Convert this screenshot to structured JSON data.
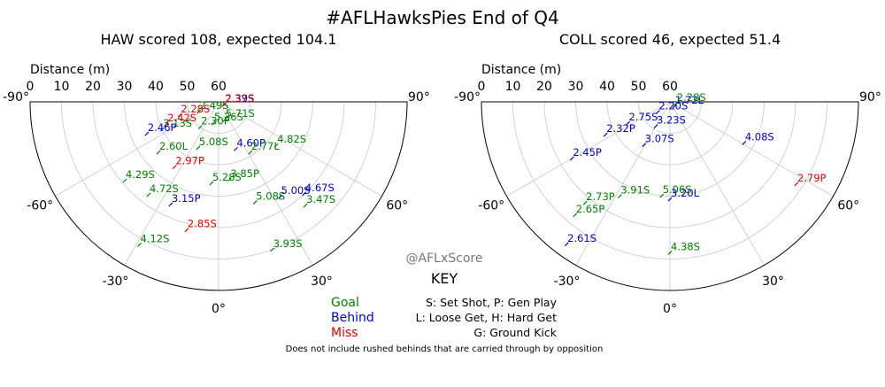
{
  "title": "#AFLHawksPies End of Q4",
  "watermark": "@AFLxScore",
  "colors": {
    "goal": "#008000",
    "behind": "#0000cc",
    "miss": "#e00000",
    "grid": "#c8c8c8"
  },
  "key": {
    "title": "KEY",
    "legend": [
      {
        "label": "Goal",
        "result": "goal"
      },
      {
        "label": "Behind",
        "result": "behind"
      },
      {
        "label": "Miss",
        "result": "miss"
      }
    ],
    "codes": [
      "S: Set Shot, P: Gen Play",
      "L: Loose Get, H: Hard Get",
      "G: Ground Kick"
    ],
    "note": "Does not include rushed behinds that are carried through by opposition"
  },
  "chart_data": [
    {
      "type": "scatter",
      "projection": "polar-half",
      "title": "HAW scored 108, expected 104.1",
      "radial_label": "Distance (m)",
      "radial_ticks": [
        60,
        50,
        40,
        30,
        20,
        10,
        0
      ],
      "radial_range": [
        0,
        60
      ],
      "angle_ticks": [
        -90,
        -60,
        -30,
        0,
        30,
        60,
        90
      ],
      "angle_tick_labels": [
        "-90°",
        "-60°",
        "-30°",
        "0°",
        "30°",
        "60°",
        "90°"
      ],
      "grid": true,
      "points": [
        {
          "label": "5.36S",
          "result": "goal",
          "angle": -14,
          "distance": 53
        },
        {
          "label": "5.71S",
          "result": "goal",
          "angle": 19,
          "distance": 54
        },
        {
          "label": "4.60P",
          "result": "behind",
          "angle": 20,
          "distance": 44
        },
        {
          "label": "2.30P",
          "result": "goal",
          "angle": -36,
          "distance": 50
        },
        {
          "label": "5.08S",
          "result": "goal",
          "angle": -24,
          "distance": 44
        },
        {
          "label": "5.28S",
          "result": "goal",
          "angle": -5,
          "distance": 34
        },
        {
          "label": "3.85P",
          "result": "goal",
          "angle": 8,
          "distance": 35
        },
        {
          "label": "2.97P",
          "result": "miss",
          "angle": -34,
          "distance": 35
        },
        {
          "label": "2.77L",
          "result": "goal",
          "angle": 32,
          "distance": 41
        },
        {
          "label": "2.49S",
          "result": "goal",
          "angle": -64,
          "distance": 53
        },
        {
          "label": "2.60L",
          "result": "goal",
          "angle": -50,
          "distance": 35
        },
        {
          "label": "3.15P",
          "result": "behind",
          "angle": -25,
          "distance": 24
        },
        {
          "label": "5.08S",
          "result": "goal",
          "angle": 20,
          "distance": 26
        },
        {
          "label": "3.13S",
          "result": "goal",
          "angle": -64,
          "distance": 40
        },
        {
          "label": "4.72S",
          "result": "goal",
          "angle": -37,
          "distance": 23
        },
        {
          "label": "5.00S",
          "result": "behind",
          "angle": 33,
          "distance": 24
        },
        {
          "label": "4.82S",
          "result": "goal",
          "angle": 53,
          "distance": 37
        },
        {
          "label": "2.39S",
          "result": "behind",
          "angle": 66,
          "distance": 58
        },
        {
          "label": "2.46P",
          "result": "behind",
          "angle": -66,
          "distance": 35
        },
        {
          "label": "4.29S",
          "result": "goal",
          "angle": -50,
          "distance": 21
        },
        {
          "label": "4.67S",
          "result": "behind",
          "angle": 43,
          "distance": 20
        },
        {
          "label": "2.37S",
          "result": "miss",
          "angle": 61,
          "distance": 58
        },
        {
          "label": "2.28S",
          "result": "miss",
          "angle": -71,
          "distance": 47
        },
        {
          "label": "4.12S",
          "result": "goal",
          "angle": -29,
          "distance": 8
        },
        {
          "label": "3.93S",
          "result": "goal",
          "angle": 20,
          "distance": 10
        },
        {
          "label": "2.42S",
          "result": "miss",
          "angle": -67,
          "distance": 42
        },
        {
          "label": "3.47S",
          "result": "goal",
          "angle": 40,
          "distance": 17
        },
        {
          "label": "2.85S",
          "result": "miss",
          "angle": -14,
          "distance": 18
        }
      ]
    },
    {
      "type": "scatter",
      "projection": "polar-half",
      "title": "COLL scored 46, expected 51.4",
      "radial_label": "Distance (m)",
      "radial_ticks": [
        60,
        50,
        40,
        30,
        20,
        10,
        0
      ],
      "radial_range": [
        0,
        60
      ],
      "angle_ticks": [
        -90,
        -60,
        -30,
        0,
        30,
        60,
        90
      ],
      "angle_tick_labels": [
        "-90°",
        "-60°",
        "-30°",
        "0°",
        "30°",
        "60°",
        "90°"
      ],
      "grid": true,
      "points": [
        {
          "label": "3.23S",
          "result": "behind",
          "angle": -30,
          "distance": 51
        },
        {
          "label": "1.72L",
          "result": "behind",
          "angle": 44,
          "distance": 58
        },
        {
          "label": "2.20S",
          "result": "behind",
          "angle": -50,
          "distance": 55
        },
        {
          "label": "3.07S",
          "result": "behind",
          "angle": -31,
          "distance": 44
        },
        {
          "label": "5.06S",
          "result": "goal",
          "angle": -5,
          "distance": 30
        },
        {
          "label": "3.20L",
          "result": "behind",
          "angle": 0,
          "distance": 29
        },
        {
          "label": "3.91S",
          "result": "goal",
          "angle": -28,
          "distance": 26
        },
        {
          "label": "2.75S",
          "result": "behind",
          "angle": -63,
          "distance": 45
        },
        {
          "label": "4.08S",
          "result": "behind",
          "angle": 61,
          "distance": 33
        },
        {
          "label": "2.28S",
          "result": "goal",
          "angle": 73,
          "distance": 58
        },
        {
          "label": "2.73P",
          "result": "goal",
          "angle": -40,
          "distance": 18
        },
        {
          "label": "2.32P",
          "result": "behind",
          "angle": -63,
          "distance": 37
        },
        {
          "label": "4.38S",
          "result": "goal",
          "angle": 0,
          "distance": 12
        },
        {
          "label": "2.65P",
          "result": "goal",
          "angle": -40,
          "distance": 13
        },
        {
          "label": "2.79P",
          "result": "miss",
          "angle": 57,
          "distance": 12
        },
        {
          "label": "2.45P",
          "result": "behind",
          "angle": -60,
          "distance": 24
        },
        {
          "label": "2.61S",
          "result": "behind",
          "angle": -36,
          "distance": 4
        }
      ]
    }
  ]
}
